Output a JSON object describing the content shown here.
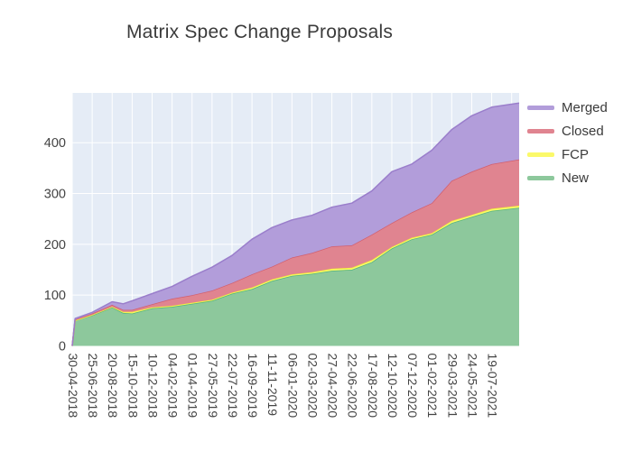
{
  "chart_data": {
    "type": "area",
    "stacked": true,
    "title": "Matrix Spec Change Proposals",
    "legend_position": "right",
    "grid": true,
    "plot_bg": "#e5ecf6",
    "grid_color": "#ffffff",
    "text_color": "#444444",
    "x_axis": {
      "tick_labels": [
        "30-04-2018",
        "25-06-2018",
        "20-08-2018",
        "15-10-2018",
        "10-12-2018",
        "04-02-2019",
        "01-04-2019",
        "27-05-2019",
        "22-07-2019",
        "16-09-2019",
        "11-11-2019",
        "06-01-2020",
        "02-03-2020",
        "27-04-2020",
        "22-06-2020",
        "17-08-2020",
        "12-10-2020",
        "07-12-2020",
        "01-02-2021",
        "29-03-2021",
        "24-05-2021",
        "19-07-2021",
        ""
      ],
      "tick_days": [
        0,
        56,
        112,
        168,
        224,
        280,
        336,
        392,
        448,
        504,
        560,
        616,
        672,
        728,
        784,
        840,
        896,
        952,
        1008,
        1064,
        1120,
        1176,
        1232
      ],
      "tick_interval_days": 56
    },
    "y_axis": {
      "tick_labels": [
        "0",
        "100",
        "200",
        "300",
        "400"
      ],
      "ticks": [
        0,
        100,
        200,
        300,
        400
      ],
      "range": [
        0,
        498
      ]
    },
    "samples_dates": [
      "30-04-2018",
      "08-05-2018",
      "25-06-2018",
      "20-08-2018",
      "20-09-2018",
      "15-10-2018",
      "10-12-2018",
      "04-02-2019",
      "01-04-2019",
      "27-05-2019",
      "22-07-2019",
      "16-09-2019",
      "11-11-2019",
      "06-01-2020",
      "02-03-2020",
      "27-04-2020",
      "22-06-2020",
      "17-08-2020",
      "12-10-2020",
      "07-12-2020",
      "01-02-2021",
      "29-03-2021",
      "24-05-2021",
      "19-07-2021",
      "04-10-2021"
    ],
    "samples_days": [
      0,
      8,
      56,
      112,
      143,
      168,
      224,
      280,
      336,
      392,
      448,
      504,
      560,
      616,
      672,
      728,
      784,
      840,
      896,
      952,
      1008,
      1064,
      1120,
      1176,
      1253
    ],
    "series": [
      {
        "name": "New",
        "fill": "#8dc89c",
        "line": "#54b47d",
        "values": [
          0,
          50,
          60,
          76,
          65,
          64,
          74,
          77,
          83,
          89,
          103,
          112,
          128,
          138,
          142,
          148,
          150,
          165,
          192,
          210,
          219,
          242,
          254,
          266,
          272
        ]
      },
      {
        "name": "FCP",
        "fill": "#fbf96a",
        "line": "#f0ed3a",
        "values": [
          0,
          0,
          1,
          1,
          2,
          3,
          2,
          2,
          2,
          2,
          2,
          3,
          3,
          3,
          3,
          4,
          4,
          4,
          3,
          3,
          3,
          4,
          4,
          4,
          4
        ]
      },
      {
        "name": "Closed",
        "fill": "#e08490",
        "line": "#d25f6e",
        "values": [
          0,
          2,
          3,
          4,
          4,
          4,
          6,
          14,
          15,
          18,
          19,
          26,
          25,
          33,
          38,
          44,
          44,
          50,
          47,
          50,
          59,
          79,
          85,
          88,
          91
        ]
      },
      {
        "name": "Merged",
        "fill": "#b29dda",
        "line": "#9a7ecb",
        "values": [
          0,
          2,
          2,
          6,
          12,
          18,
          21,
          24,
          37,
          46,
          54,
          69,
          77,
          74,
          74,
          77,
          83,
          86,
          101,
          95,
          104,
          101,
          110,
          112,
          111
        ]
      }
    ]
  }
}
